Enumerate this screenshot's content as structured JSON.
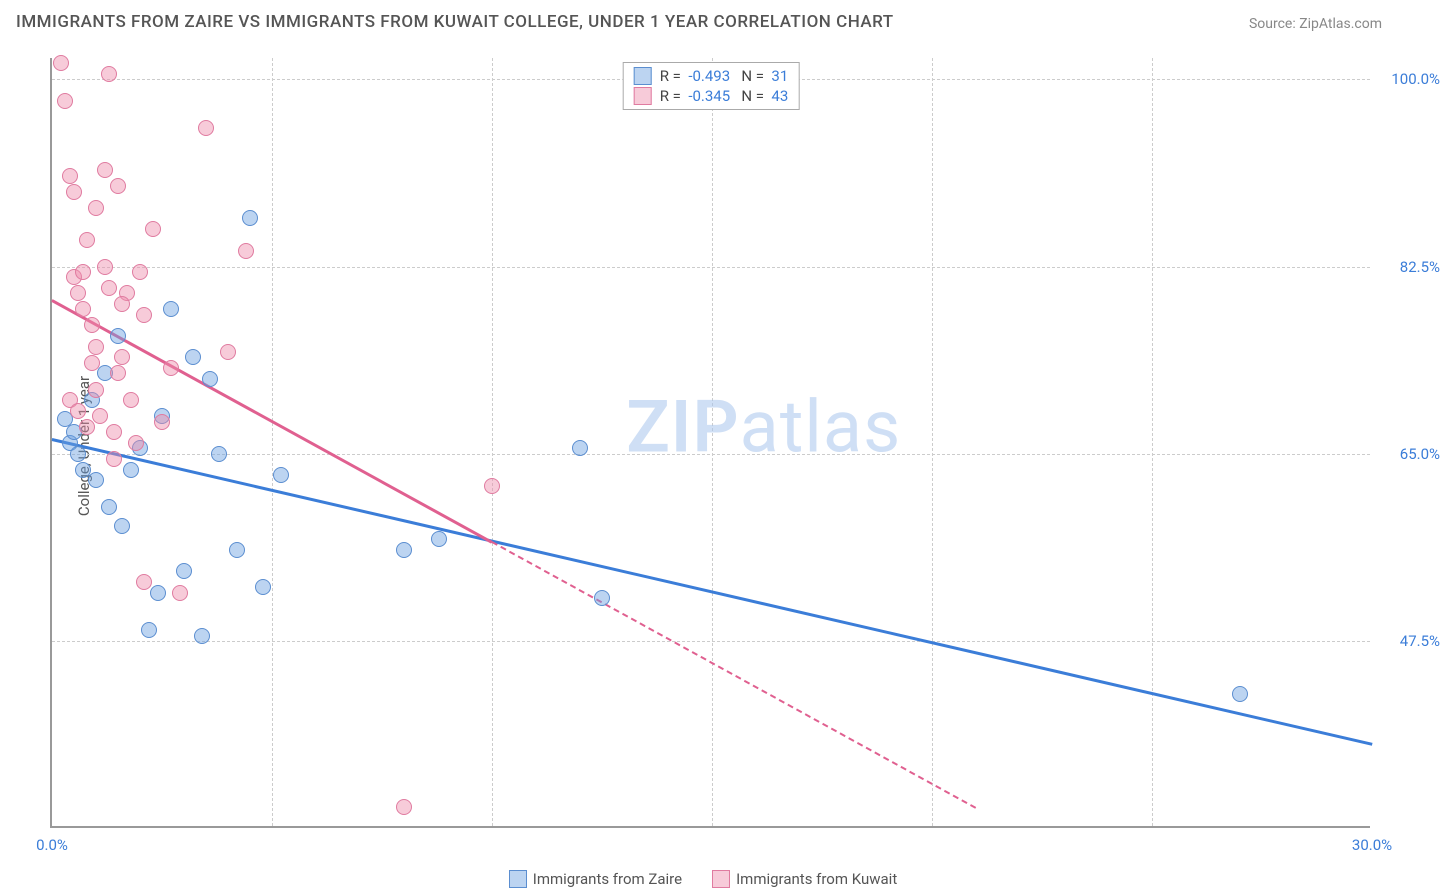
{
  "title": "IMMIGRANTS FROM ZAIRE VS IMMIGRANTS FROM KUWAIT COLLEGE, UNDER 1 YEAR CORRELATION CHART",
  "source": "Source: ZipAtlas.com",
  "y_axis_label": "College, Under 1 year",
  "watermark_bold": "ZIP",
  "watermark_light": "atlas",
  "chart": {
    "type": "scatter",
    "xlim": [
      0,
      30
    ],
    "ylim": [
      30,
      102
    ],
    "y_ticks": [
      {
        "v": 100.0,
        "label": "100.0%"
      },
      {
        "v": 82.5,
        "label": "82.5%"
      },
      {
        "v": 65.0,
        "label": "65.0%"
      },
      {
        "v": 47.5,
        "label": "47.5%"
      }
    ],
    "x_ticks": [
      {
        "v": 0.0,
        "label": "0.0%"
      },
      {
        "v": 30.0,
        "label": "30.0%"
      }
    ],
    "x_grid": [
      5,
      10,
      15,
      20,
      25
    ],
    "series": [
      {
        "name": "Immigrants from Zaire",
        "fill": "rgba(107,160,225,0.45)",
        "stroke": "#5b8ed0",
        "line_color": "#3b7dd8",
        "r": -0.493,
        "n": 31,
        "trend": {
          "x1": 0,
          "y1": 66.5,
          "x2": 30,
          "y2": 38,
          "dashed_after_x": null
        },
        "points": [
          [
            0.3,
            68.2
          ],
          [
            0.4,
            66.0
          ],
          [
            0.5,
            67.0
          ],
          [
            0.6,
            65.0
          ],
          [
            0.7,
            63.5
          ],
          [
            0.9,
            70.0
          ],
          [
            1.0,
            62.5
          ],
          [
            1.2,
            72.5
          ],
          [
            1.3,
            60.0
          ],
          [
            1.5,
            76.0
          ],
          [
            1.6,
            58.2
          ],
          [
            1.8,
            63.5
          ],
          [
            2.0,
            65.5
          ],
          [
            2.2,
            48.5
          ],
          [
            2.4,
            52.0
          ],
          [
            2.7,
            78.5
          ],
          [
            3.0,
            54.0
          ],
          [
            3.2,
            74.0
          ],
          [
            3.4,
            48.0
          ],
          [
            3.6,
            72.0
          ],
          [
            3.8,
            65.0
          ],
          [
            4.2,
            56.0
          ],
          [
            4.5,
            87.0
          ],
          [
            4.8,
            52.5
          ],
          [
            5.2,
            63.0
          ],
          [
            8.0,
            56.0
          ],
          [
            8.8,
            57.0
          ],
          [
            12.5,
            51.5
          ],
          [
            12.0,
            65.5
          ],
          [
            27.0,
            42.5
          ],
          [
            2.5,
            68.5
          ]
        ]
      },
      {
        "name": "Immigrants from Kuwait",
        "fill": "rgba(238,140,170,0.45)",
        "stroke": "#e07ba0",
        "line_color": "#e06090",
        "r": -0.345,
        "n": 43,
        "trend": {
          "x1": 0,
          "y1": 79.5,
          "x2": 21,
          "y2": 32,
          "dashed_after_x": 10.0
        },
        "points": [
          [
            0.2,
            101.5
          ],
          [
            0.3,
            98.0
          ],
          [
            0.4,
            91.0
          ],
          [
            0.5,
            89.5
          ],
          [
            0.5,
            81.5
          ],
          [
            0.6,
            80.0
          ],
          [
            0.7,
            78.5
          ],
          [
            0.7,
            82.0
          ],
          [
            0.8,
            85.0
          ],
          [
            0.9,
            77.0
          ],
          [
            0.9,
            73.5
          ],
          [
            1.0,
            71.0
          ],
          [
            1.0,
            75.0
          ],
          [
            1.1,
            68.5
          ],
          [
            1.2,
            91.5
          ],
          [
            1.3,
            80.5
          ],
          [
            1.4,
            67.0
          ],
          [
            1.5,
            90.0
          ],
          [
            1.5,
            72.5
          ],
          [
            1.6,
            74.0
          ],
          [
            1.7,
            80.0
          ],
          [
            1.8,
            70.0
          ],
          [
            1.9,
            66.0
          ],
          [
            2.0,
            82.0
          ],
          [
            2.1,
            78.0
          ],
          [
            2.3,
            86.0
          ],
          [
            2.5,
            68.0
          ],
          [
            2.7,
            73.0
          ],
          [
            2.1,
            53.0
          ],
          [
            2.9,
            52.0
          ],
          [
            1.3,
            100.5
          ],
          [
            1.6,
            79.0
          ],
          [
            1.2,
            82.5
          ],
          [
            0.4,
            70.0
          ],
          [
            0.6,
            69.0
          ],
          [
            0.8,
            67.5
          ],
          [
            1.0,
            88.0
          ],
          [
            3.5,
            95.5
          ],
          [
            4.4,
            84.0
          ],
          [
            4.0,
            74.5
          ],
          [
            10.0,
            62.0
          ],
          [
            8.0,
            32.0
          ],
          [
            1.4,
            64.5
          ]
        ]
      }
    ]
  }
}
